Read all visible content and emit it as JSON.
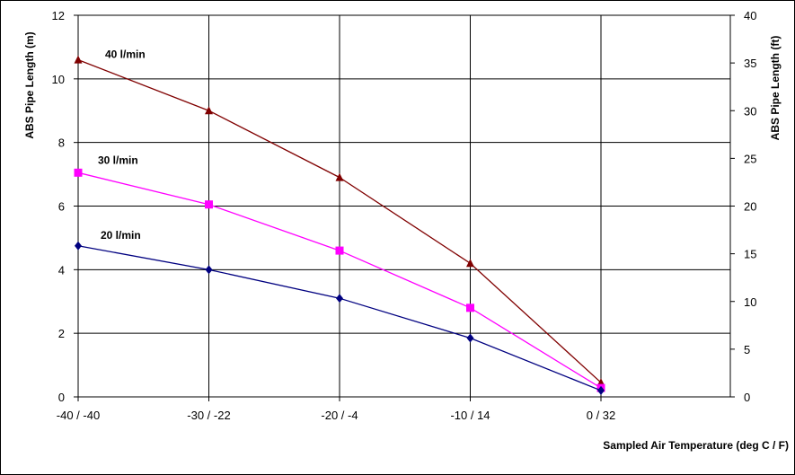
{
  "chart_data": {
    "type": "line",
    "categories": [
      "-40 / -40",
      "-30 / -22",
      "-20 / -4",
      "-10 / 14",
      "0 / 32"
    ],
    "series": [
      {
        "name": "40 l/min",
        "values": [
          10.6,
          9.0,
          6.9,
          4.2,
          0.45
        ],
        "color": "#800000",
        "marker": "triangle"
      },
      {
        "name": "30 l/min",
        "values": [
          7.05,
          6.05,
          4.6,
          2.8,
          0.28
        ],
        "color": "#ff00ff",
        "marker": "square"
      },
      {
        "name": "20 l/min",
        "values": [
          4.75,
          4.0,
          3.1,
          1.85,
          0.2
        ],
        "color": "#000080",
        "marker": "diamond"
      }
    ],
    "xlabel": "Sampled Air Temperature (deg C / F)",
    "ylabel": "ABS Pipe Length (m)",
    "y2label": "ABS Pipe Length (ft)",
    "ylim": [
      0,
      12
    ],
    "y2lim": [
      0,
      40
    ],
    "yticks": [
      "0",
      "2",
      "4",
      "6",
      "8",
      "10",
      "12"
    ],
    "y2ticks": [
      "0",
      "5",
      "10",
      "15",
      "20",
      "25",
      "30",
      "35",
      "40"
    ],
    "grid": true,
    "legend": "inline labels"
  }
}
